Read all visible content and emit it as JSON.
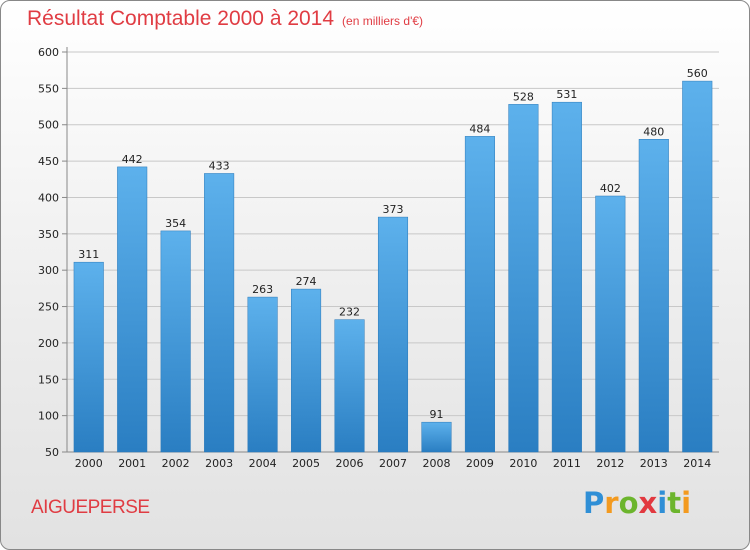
{
  "chart_data": {
    "type": "bar",
    "title": "Résultat Comptable 2000 à 2014",
    "subtitle": "(en milliers d'€)",
    "categories": [
      "2000",
      "2001",
      "2002",
      "2003",
      "2004",
      "2005",
      "2006",
      "2007",
      "2008",
      "2009",
      "2010",
      "2011",
      "2012",
      "2013",
      "2014"
    ],
    "values": [
      311,
      442,
      354,
      433,
      263,
      274,
      232,
      373,
      91,
      484,
      528,
      531,
      402,
      480,
      560
    ],
    "xlabel": "",
    "ylabel": "",
    "ylim": [
      50,
      600
    ],
    "yticks": [
      "50",
      "100",
      "150",
      "200",
      "250",
      "300",
      "350",
      "400",
      "450",
      "500",
      "550",
      "600"
    ],
    "grid": true,
    "bar_color": "#4a9fe0"
  },
  "location": "AIGUEPERSE",
  "brand": {
    "text": "Proxiti",
    "letters": [
      "P",
      "r",
      "o",
      "x",
      "i",
      "t",
      "i"
    ],
    "colors": [
      "#2f8fd6",
      "#f39a1f",
      "#6cb52d",
      "#e2383f",
      "#2f8fd6",
      "#6cb52d",
      "#f39a1f"
    ]
  }
}
